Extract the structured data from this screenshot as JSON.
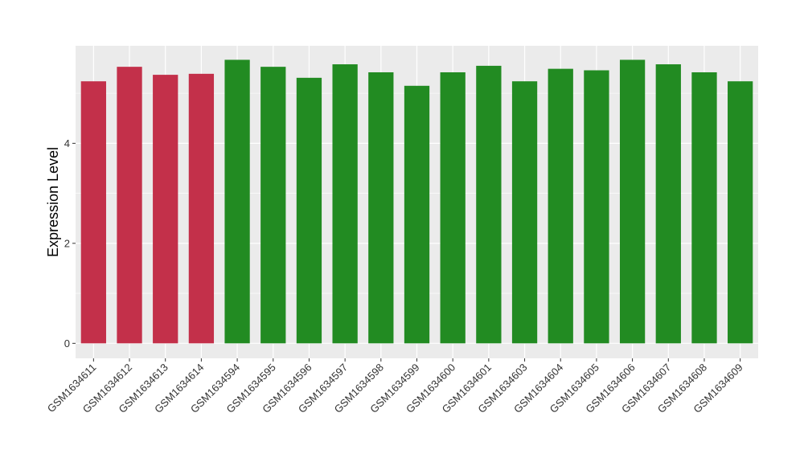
{
  "chart_data": {
    "type": "bar",
    "title": "",
    "xlabel": "",
    "ylabel": "Expression Level",
    "ylim": [
      -0.3,
      5.95
    ],
    "yticks": [
      0,
      2,
      4
    ],
    "grid": true,
    "legend": "none",
    "colors": {
      "panel_background": "#EBEBEB",
      "grid_major": "#FFFFFF",
      "group_1": "#C3304A",
      "group_2": "#228B22"
    },
    "categories": [
      "GSM1634611",
      "GSM1634612",
      "GSM1634613",
      "GSM1634614",
      "GSM1634594",
      "GSM1634595",
      "GSM1634596",
      "GSM1634597",
      "GSM1634598",
      "GSM1634599",
      "GSM1634600",
      "GSM1634601",
      "GSM1634603",
      "GSM1634604",
      "GSM1634605",
      "GSM1634606",
      "GSM1634607",
      "GSM1634608",
      "GSM1634609"
    ],
    "values": [
      5.24,
      5.53,
      5.37,
      5.39,
      5.67,
      5.53,
      5.31,
      5.58,
      5.42,
      5.15,
      5.42,
      5.55,
      5.24,
      5.49,
      5.46,
      5.67,
      5.58,
      5.42,
      5.24
    ],
    "bar_groups": [
      1,
      1,
      1,
      1,
      2,
      2,
      2,
      2,
      2,
      2,
      2,
      2,
      2,
      2,
      2,
      2,
      2,
      2,
      2
    ]
  }
}
